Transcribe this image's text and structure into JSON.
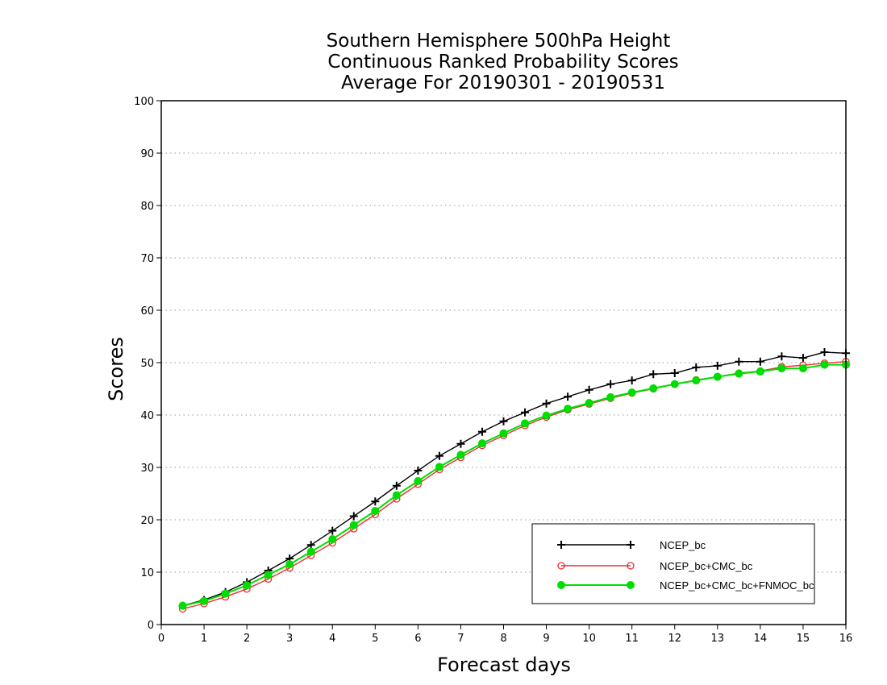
{
  "chart_data": {
    "type": "line",
    "title": [
      "Southern Hemisphere 500hPa Height",
      "Continuous Ranked Probability Scores",
      "Average For 20190301 - 20190531"
    ],
    "xlabel": "Forecast days",
    "ylabel": "Scores",
    "xlim": [
      0,
      16
    ],
    "ylim": [
      0,
      100
    ],
    "xticks": [
      "0",
      "1",
      "2",
      "3",
      "4",
      "5",
      "6",
      "7",
      "8",
      "9",
      "10",
      "11",
      "12",
      "13",
      "14",
      "15",
      "16"
    ],
    "yticks": [
      "0",
      "10",
      "20",
      "30",
      "40",
      "50",
      "60",
      "70",
      "80",
      "90",
      "100"
    ],
    "grid": "horizontal-dotted",
    "legend_position": "bottom-right",
    "x": [
      0.5,
      1,
      1.5,
      2,
      2.5,
      3,
      3.5,
      4,
      4.5,
      5,
      5.5,
      6,
      6.5,
      7,
      7.5,
      8,
      8.5,
      9,
      9.5,
      10,
      10.5,
      11,
      11.5,
      12,
      12.5,
      13,
      13.5,
      14,
      14.5,
      15,
      15.5,
      16
    ],
    "series": [
      {
        "name": "NCEP_bc",
        "color": "#000000",
        "marker": "plus",
        "values": [
          3.6,
          4.7,
          6.2,
          8.1,
          10.3,
          12.6,
          15.2,
          17.9,
          20.7,
          23.5,
          26.5,
          29.4,
          32.2,
          34.5,
          36.8,
          38.8,
          40.5,
          42.2,
          43.5,
          44.8,
          45.9,
          46.6,
          47.8,
          48.0,
          49.1,
          49.4,
          50.2,
          50.2,
          51.2,
          50.9,
          52.0,
          51.8
        ]
      },
      {
        "name": "NCEP_bc+CMC_bc",
        "color": "#e83030",
        "marker": "open-circle",
        "values": [
          3.0,
          4.0,
          5.3,
          6.8,
          8.7,
          10.8,
          13.2,
          15.6,
          18.3,
          21.0,
          24.0,
          26.8,
          29.6,
          31.9,
          34.2,
          36.1,
          38.0,
          39.6,
          41.0,
          42.1,
          43.2,
          44.2,
          45.0,
          45.9,
          46.7,
          47.3,
          48.0,
          48.4,
          49.2,
          49.5,
          49.9,
          50.2
        ]
      },
      {
        "name": "NCEP_bc+CMC_bc+FNMOC_bc",
        "color": "#00dd00",
        "marker": "filled-circle",
        "values": [
          3.6,
          4.5,
          5.9,
          7.5,
          9.5,
          11.5,
          13.9,
          16.3,
          19.0,
          21.7,
          24.7,
          27.4,
          30.1,
          32.4,
          34.6,
          36.5,
          38.4,
          39.9,
          41.2,
          42.3,
          43.4,
          44.3,
          45.1,
          45.9,
          46.6,
          47.3,
          47.9,
          48.3,
          48.9,
          48.9,
          49.6,
          49.6
        ]
      }
    ]
  }
}
